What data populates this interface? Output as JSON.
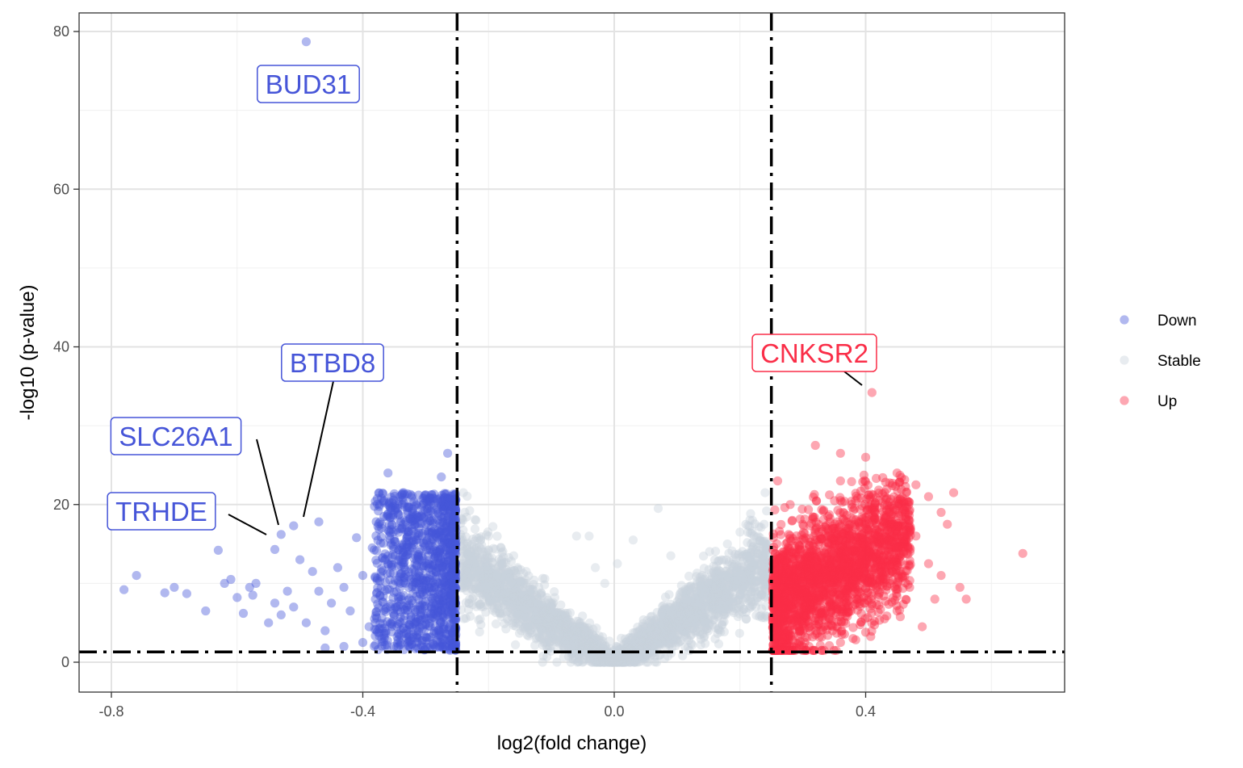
{
  "chart_data": {
    "type": "scatter",
    "title": "",
    "xlabel": "log2(fold change)",
    "ylabel": "-log10 (p-value)",
    "xlim": [
      -0.84,
      0.72
    ],
    "ylim": [
      -3.5,
      82
    ],
    "x_ticks": [
      -0.8,
      -0.4,
      0.0,
      0.4
    ],
    "x_tick_labels": [
      "-0.8",
      "-0.4",
      "0.0",
      "0.4"
    ],
    "y_ticks": [
      0,
      20,
      40,
      60,
      80
    ],
    "y_tick_labels": [
      "0",
      "20",
      "40",
      "60",
      "80"
    ],
    "grid": true,
    "thresholds": {
      "fc_left": -0.25,
      "fc_right": 0.25,
      "p_line": 1.3
    },
    "legend_position": "right",
    "colors": {
      "Down": "#4655d8",
      "Stable": "#c7d1db",
      "Up": "#fa2e48",
      "threshold_line": "#000000"
    },
    "series": [
      {
        "name": "Down",
        "points": [
          [
            -0.49,
            78.7
          ],
          [
            -0.51,
            17.3
          ],
          [
            -0.47,
            17.8
          ],
          [
            -0.53,
            16.2
          ],
          [
            -0.54,
            14.3
          ],
          [
            -0.78,
            9.2
          ],
          [
            -0.76,
            11.0
          ],
          [
            -0.715,
            8.8
          ],
          [
            -0.7,
            9.5
          ],
          [
            -0.68,
            8.7
          ],
          [
            -0.65,
            6.5
          ],
          [
            -0.63,
            14.2
          ],
          [
            -0.62,
            10.0
          ],
          [
            -0.61,
            10.5
          ],
          [
            -0.6,
            8.2
          ],
          [
            -0.59,
            6.2
          ],
          [
            -0.58,
            9.5
          ],
          [
            -0.575,
            8.5
          ],
          [
            -0.57,
            10.0
          ],
          [
            -0.55,
            5.0
          ],
          [
            -0.54,
            7.5
          ],
          [
            -0.53,
            6.0
          ],
          [
            -0.52,
            9.0
          ],
          [
            -0.51,
            7.0
          ],
          [
            -0.5,
            13.0
          ],
          [
            -0.49,
            5.0
          ],
          [
            -0.48,
            11.5
          ],
          [
            -0.47,
            9.0
          ],
          [
            -0.46,
            4.0
          ],
          [
            -0.45,
            7.5
          ],
          [
            -0.44,
            12.0
          ],
          [
            -0.43,
            9.5
          ],
          [
            -0.42,
            6.5
          ],
          [
            -0.41,
            15.8
          ],
          [
            -0.4,
            11.0
          ],
          [
            -0.39,
            4.5
          ],
          [
            -0.385,
            14.5
          ],
          [
            -0.38,
            8.0
          ],
          [
            -0.37,
            17.5
          ],
          [
            -0.36,
            24.0
          ],
          [
            -0.355,
            12.5
          ],
          [
            -0.35,
            6.0
          ],
          [
            -0.345,
            19.5
          ],
          [
            -0.34,
            10.0
          ],
          [
            -0.335,
            21.5
          ],
          [
            -0.33,
            15.0
          ],
          [
            -0.32,
            7.5
          ],
          [
            -0.31,
            13.0
          ],
          [
            -0.3,
            20.5
          ],
          [
            -0.295,
            9.5
          ],
          [
            -0.29,
            16.5
          ],
          [
            -0.285,
            4.5
          ],
          [
            -0.28,
            12.0
          ],
          [
            -0.275,
            23.5
          ],
          [
            -0.27,
            18.5
          ],
          [
            -0.268,
            8.5
          ],
          [
            -0.265,
            26.5
          ],
          [
            -0.262,
            14.5
          ],
          [
            -0.26,
            11.0
          ],
          [
            -0.258,
            6.5
          ],
          [
            -0.255,
            20.5
          ],
          [
            -0.253,
            16.0
          ],
          [
            -0.252,
            3.5
          ],
          [
            -0.36,
            13.5
          ],
          [
            -0.33,
            17.0
          ],
          [
            -0.31,
            11.5
          ],
          [
            -0.29,
            14.0
          ],
          [
            -0.28,
            9.0
          ],
          [
            -0.27,
            15.5
          ],
          [
            -0.3,
            5.5
          ],
          [
            -0.32,
            3.5
          ],
          [
            -0.34,
            5.0
          ],
          [
            -0.37,
            3.0
          ],
          [
            -0.4,
            2.5
          ],
          [
            -0.43,
            2.0
          ],
          [
            -0.46,
            1.8
          ],
          [
            -0.38,
            2.2
          ]
        ]
      },
      {
        "name": "Stable",
        "points": [
          [
            -0.24,
            21.5
          ],
          [
            -0.22,
            18.0
          ],
          [
            -0.2,
            16.0
          ],
          [
            -0.18,
            14.5
          ],
          [
            -0.16,
            13.5
          ],
          [
            -0.14,
            11.5
          ],
          [
            -0.12,
            9.5
          ],
          [
            -0.1,
            7.5
          ],
          [
            -0.08,
            5.5
          ],
          [
            -0.06,
            3.8
          ],
          [
            -0.04,
            2.2
          ],
          [
            -0.02,
            0.8
          ],
          [
            0.0,
            0.1
          ],
          [
            0.02,
            0.8
          ],
          [
            0.04,
            2.0
          ],
          [
            0.06,
            3.5
          ],
          [
            0.08,
            5.0
          ],
          [
            0.1,
            7.0
          ],
          [
            0.12,
            9.0
          ],
          [
            0.14,
            11.0
          ],
          [
            0.16,
            13.0
          ],
          [
            0.18,
            15.0
          ],
          [
            0.2,
            16.5
          ],
          [
            0.22,
            18.0
          ],
          [
            0.24,
            21.5
          ],
          [
            -0.06,
            16.0
          ],
          [
            -0.04,
            16.0
          ],
          [
            0.07,
            19.5
          ],
          [
            0.03,
            15.5
          ],
          [
            -0.03,
            12.0
          ],
          [
            0.09,
            13.5
          ],
          [
            0.005,
            12.5
          ],
          [
            -0.015,
            10.0
          ]
        ]
      },
      {
        "name": "Up",
        "points": [
          [
            0.41,
            34.2
          ],
          [
            0.65,
            13.8
          ],
          [
            0.32,
            27.5
          ],
          [
            0.36,
            26.5
          ],
          [
            0.4,
            26.0
          ],
          [
            0.36,
            23.0
          ],
          [
            0.43,
            21.0
          ],
          [
            0.45,
            24.0
          ],
          [
            0.48,
            22.5
          ],
          [
            0.5,
            21.0
          ],
          [
            0.52,
            19.0
          ],
          [
            0.54,
            21.5
          ],
          [
            0.53,
            17.5
          ],
          [
            0.48,
            16.0
          ],
          [
            0.46,
            14.5
          ],
          [
            0.5,
            12.5
          ],
          [
            0.52,
            11.0
          ],
          [
            0.47,
            9.5
          ],
          [
            0.51,
            8.0
          ],
          [
            0.45,
            6.5
          ],
          [
            0.43,
            5.5
          ],
          [
            0.49,
            4.5
          ],
          [
            0.4,
            3.8
          ],
          [
            0.38,
            3.0
          ],
          [
            0.36,
            2.5
          ],
          [
            0.33,
            3.2
          ],
          [
            0.31,
            2.0
          ],
          [
            0.29,
            1.8
          ],
          [
            0.27,
            1.6
          ],
          [
            0.26,
            23.0
          ],
          [
            0.28,
            20.0
          ],
          [
            0.3,
            17.5
          ],
          [
            0.32,
            15.5
          ],
          [
            0.34,
            18.5
          ],
          [
            0.36,
            20.5
          ],
          [
            0.38,
            16.0
          ],
          [
            0.4,
            18.0
          ],
          [
            0.42,
            14.0
          ],
          [
            0.44,
            17.0
          ],
          [
            0.3,
            12.0
          ],
          [
            0.28,
            10.0
          ],
          [
            0.26,
            8.0
          ],
          [
            0.33,
            9.0
          ],
          [
            0.35,
            11.0
          ],
          [
            0.37,
            7.5
          ],
          [
            0.39,
            12.5
          ],
          [
            0.41,
            10.0
          ],
          [
            0.27,
            14.0
          ],
          [
            0.29,
            6.0
          ],
          [
            0.31,
            4.5
          ],
          [
            0.26,
            4.0
          ],
          [
            0.34,
            13.0
          ],
          [
            0.37,
            14.0
          ],
          [
            0.43,
            11.5
          ],
          [
            0.55,
            9.5
          ],
          [
            0.56,
            8.0
          ]
        ]
      }
    ],
    "annotations": [
      {
        "text": "BUD31",
        "series": "Down",
        "point": [
          -0.49,
          78.7
        ]
      },
      {
        "text": "BTBD8",
        "series": "Down",
        "point": [
          -0.496,
          17.3
        ]
      },
      {
        "text": "SLC26A1",
        "series": "Down",
        "point": [
          -0.53,
          17.4
        ]
      },
      {
        "text": "TRHDE",
        "series": "Down",
        "point": [
          -0.55,
          16.0
        ]
      },
      {
        "text": "CNKSR2",
        "series": "Up",
        "point": [
          0.4,
          35.2
        ]
      }
    ]
  }
}
